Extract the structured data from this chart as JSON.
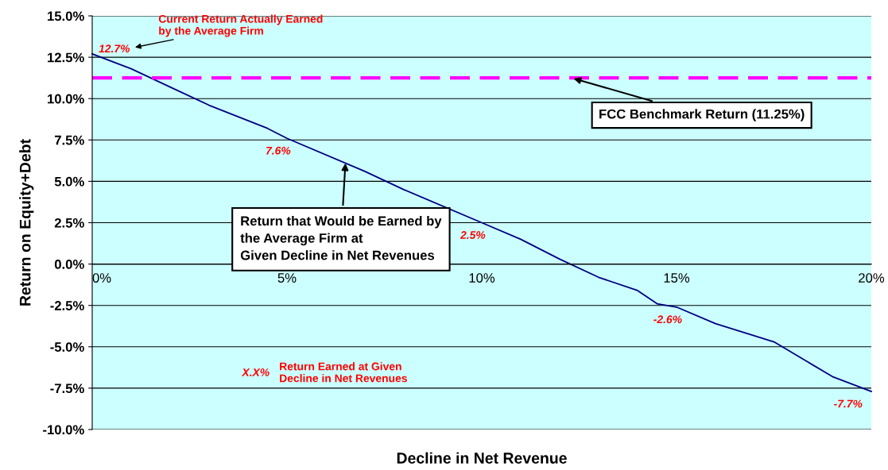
{
  "chart_data": {
    "type": "line",
    "xlabel": "Decline in Net Revenue",
    "ylabel": "Return on Equity+Debt",
    "x": [
      0,
      1,
      2,
      3,
      4.5,
      5,
      7,
      8,
      10,
      11,
      12,
      13,
      14,
      14.5,
      15,
      16,
      17.5,
      19,
      20
    ],
    "series": [
      {
        "color": "#000080",
        "values": [
          12.7,
          11.8,
          10.7,
          9.6,
          8.2,
          7.6,
          5.6,
          4.5,
          2.5,
          1.5,
          0.3,
          -0.8,
          -1.6,
          -2.4,
          -2.6,
          -3.6,
          -4.7,
          -6.8,
          -7.7
        ],
        "value_labels": [
          "12.7%",
          null,
          null,
          null,
          null,
          "7.6%",
          null,
          null,
          "2.5%",
          null,
          null,
          null,
          null,
          null,
          "-2.6%",
          null,
          null,
          null,
          "-7.7%"
        ]
      }
    ],
    "xlim": [
      0,
      20
    ],
    "xticks": [
      {
        "value": 0,
        "label": "0%"
      },
      {
        "value": 5,
        "label": "5%"
      },
      {
        "value": 10,
        "label": "10%"
      },
      {
        "value": 15,
        "label": "15%"
      },
      {
        "value": 20,
        "label": "20%"
      }
    ],
    "ylim": [
      -10,
      15
    ],
    "yticks": [
      {
        "value": -10,
        "label": "-10.0%"
      },
      {
        "value": -7.5,
        "label": "-7.5%"
      },
      {
        "value": -5,
        "label": "-5.0%"
      },
      {
        "value": -2.5,
        "label": "-2.5%"
      },
      {
        "value": 0,
        "label": "0.0%"
      },
      {
        "value": 2.5,
        "label": "2.5%"
      },
      {
        "value": 5,
        "label": "5.0%"
      },
      {
        "value": 7.5,
        "label": "7.5%"
      },
      {
        "value": 10,
        "label": "10.0%"
      },
      {
        "value": 12.5,
        "label": "12.5%"
      },
      {
        "value": 15,
        "label": "15.0%"
      }
    ],
    "grid": "y",
    "marker": "none",
    "line_style": "solid",
    "legend": false,
    "ref_lines": [
      {
        "axis": "y",
        "value": 11.25,
        "label": "FCC Benchmark Return (11.25%)",
        "color": "#ff00ff",
        "line_style": "dashed"
      }
    ],
    "annotations": [
      "Current Return Actually Earned\nby the Average Firm",
      {
        "text": "Return that Would be Earned by\nthe Average Firm at\nGiven Decline in Net Revenues",
        "x": 6.5,
        "y": 6.1
      },
      "X.X%",
      "Return Earned at Given\nDecline in Net Revenues"
    ]
  }
}
